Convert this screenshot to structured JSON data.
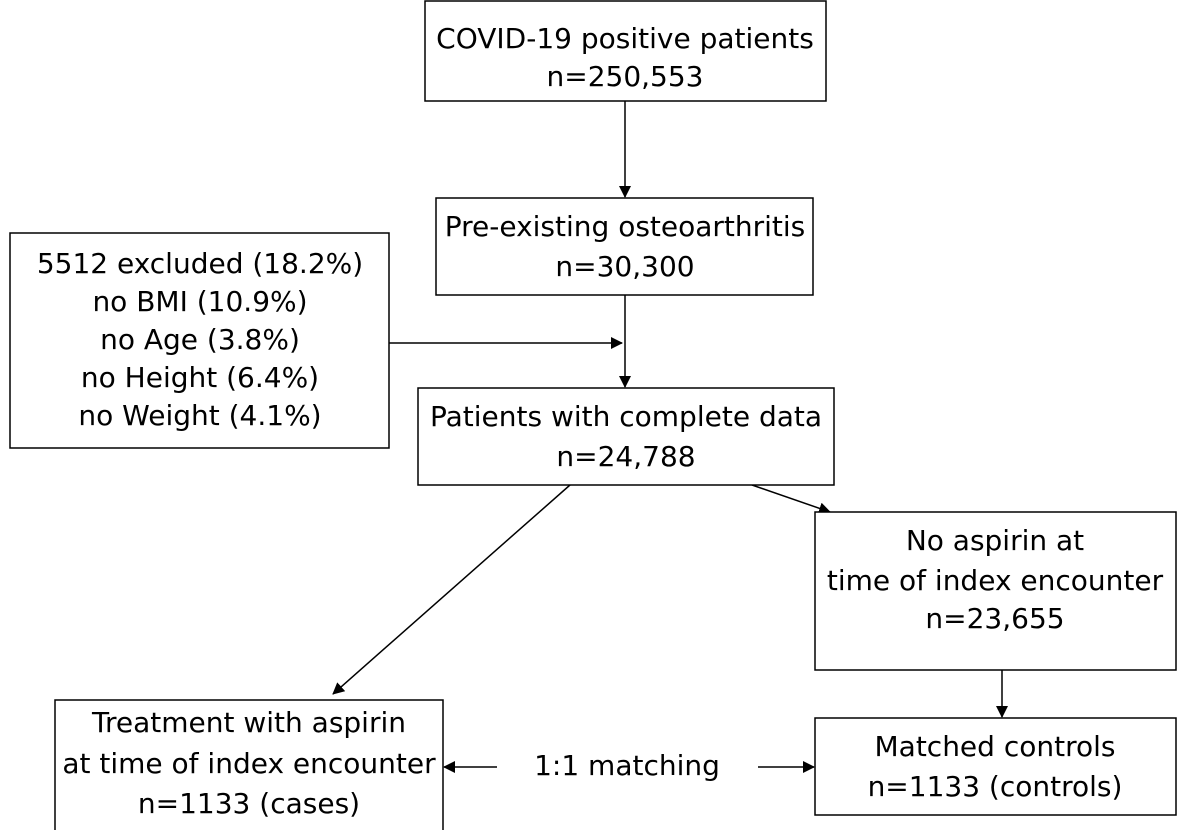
{
  "nodes": [
    {
      "lines": [
        "COVID-19 positive patients",
        "n=250,553"
      ]
    },
    {
      "lines": [
        "Pre-existing osteoarthritis",
        "n=30,300"
      ]
    },
    {
      "lines": [
        "5512 excluded (18.2%)",
        "no BMI (10.9%)",
        "no Age (3.8%)",
        "no Height (6.4%)",
        "no Weight (4.1%)"
      ]
    },
    {
      "lines": [
        "Patients with complete data",
        "n=24,788"
      ]
    },
    {
      "lines": [
        "No aspirin at",
        "time of index encounter",
        "n=23,655"
      ]
    },
    {
      "lines": [
        "Treatment with aspirin",
        "at time of index encounter",
        "n=1133 (cases)"
      ]
    },
    {
      "lines": [
        "Matched controls",
        "n=1133 (controls)"
      ]
    }
  ],
  "edge_label": "1:1 matching"
}
